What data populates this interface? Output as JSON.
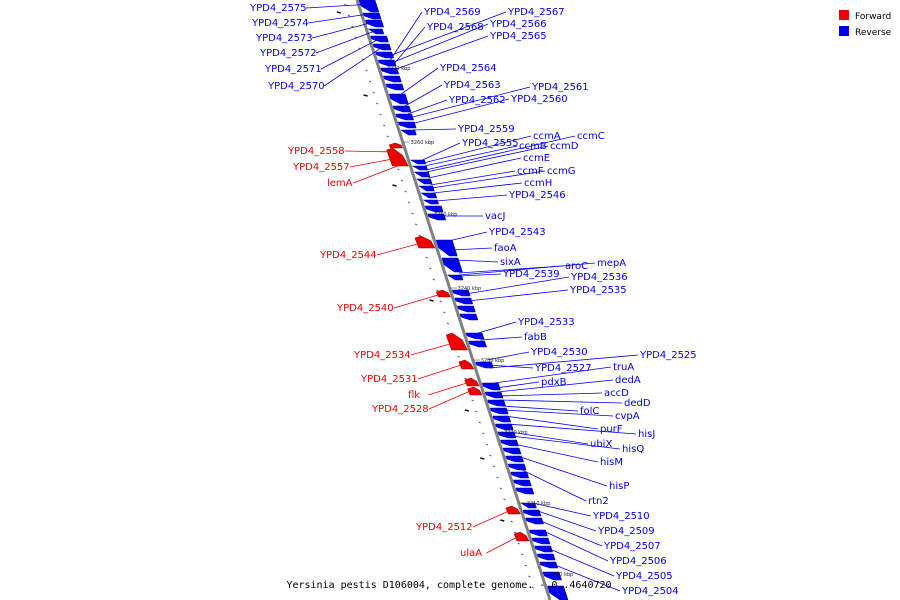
{
  "caption": "Yersinia pestis D106004, complete genome. - 0..4640720",
  "legend": [
    {
      "label": "Forward",
      "color": "#ee0000"
    },
    {
      "label": "Reverse",
      "color": "#0000ee"
    }
  ],
  "colors": {
    "forward": "#ee0000",
    "reverse": "#0000ee",
    "backbone": "#808080"
  },
  "ticks": [
    "3270 kbp",
    "3260 kbp",
    "3250 kbp",
    "3240 kbp",
    "3230 kbp",
    "3220 kbp",
    "3210 kbp",
    "3200 kbp"
  ],
  "genes_reverse": [
    "YPD4_2575",
    "YPD4_2574",
    "YPD4_2573",
    "YPD4_2572",
    "YPD4_2571",
    "YPD4_2570",
    "YPD4_2569",
    "YPD4_2568",
    "YPD4_2567",
    "YPD4_2566",
    "YPD4_2565",
    "YPD4_2564",
    "YPD4_2563",
    "YPD4_2562",
    "YPD4_2561",
    "YPD4_2560",
    "YPD4_2559",
    "YPD4_2555",
    "ccmA",
    "ccmB",
    "ccmC",
    "ccmD",
    "ccmE",
    "ccmF",
    "ccmG",
    "ccmH",
    "YPD4_2546",
    "vacJ",
    "YPD4_2543",
    "faoA",
    "sixA",
    "aroC",
    "mepA",
    "YPD4_2539",
    "YPD4_2536",
    "YPD4_2535",
    "YPD4_2533",
    "fabB",
    "YPD4_2530",
    "YPD4_2527",
    "YPD4_2525",
    "truA",
    "pdxB",
    "dedA",
    "accD",
    "dedD",
    "folC",
    "cvpA",
    "purF",
    "hisJ",
    "ubiX",
    "hisQ",
    "hisM",
    "hisP",
    "rtn2",
    "YPD4_2510",
    "YPD4_2509",
    "YPD4_2507",
    "YPD4_2506",
    "YPD4_2505",
    "YPD4_2504"
  ],
  "genes_forward": [
    "YPD4_2558",
    "YPD4_2557",
    "lemA",
    "YPD4_2544",
    "YPD4_2540",
    "YPD4_2534",
    "YPD4_2531",
    "flk",
    "YPD4_2528",
    "YPD4_2512",
    "ulaA"
  ]
}
